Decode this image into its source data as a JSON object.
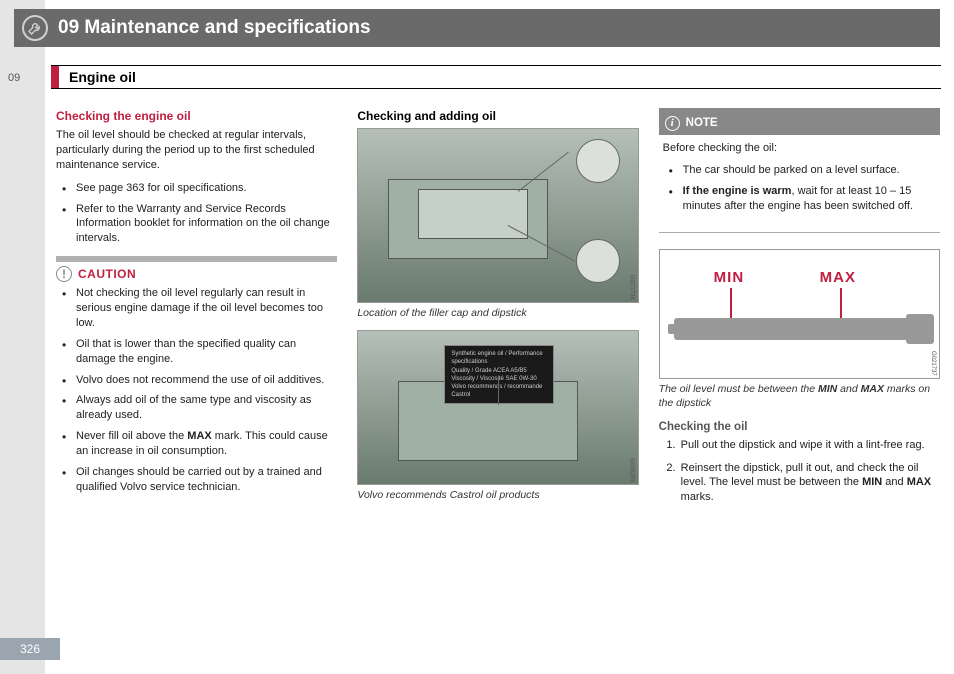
{
  "chapter_number": "09",
  "chapter_title": "09 Maintenance and specifications",
  "section_title": "Engine oil",
  "page_number": "326",
  "col1": {
    "heading": "Checking the engine oil",
    "intro": "The oil level should be checked at regular intervals, particularly during the period up to the first scheduled maintenance service.",
    "bullets": [
      "See page 363 for oil specifications.",
      "Refer to the Warranty and Service Records Information booklet for information on the oil change intervals."
    ],
    "caution_label": "CAUTION",
    "caution_bullets": [
      "Not checking the oil level regularly can result in serious engine damage if the oil level becomes too low.",
      "Oil that is lower than the specified quality can damage the engine.",
      "Volvo does not recommend the use of oil additives.",
      "Always add oil of the same type and viscosity as already used.",
      "Never fill oil above the <b>MAX</b> mark. This could cause an increase in oil consumption.",
      "Oil changes should be carried out by a trained and qualified Volvo service technician."
    ]
  },
  "col2": {
    "heading": "Checking and adding oil",
    "fig1_caption": "Location of the filler cap and dipstick",
    "fig2_caption": "Volvo recommends Castrol oil products",
    "fig1_code": "G021734",
    "fig2_code": "G046294"
  },
  "col3": {
    "note_label": "NOTE",
    "note_intro": "Before checking the oil:",
    "note_bullets": [
      "The car should be parked on a level surface.",
      "<b>If the engine is warm</b>, wait for at least 10 – 15 minutes after the engine has been switched off."
    ],
    "dipstick_min": "MIN",
    "dipstick_max": "MAX",
    "dipstick_caption": "The oil level must be between the <b>MIN</b> and <b>MAX</b> marks on the dipstick",
    "dipstick_code": "G021737",
    "check_heading": "Checking the oil",
    "steps": [
      "Pull out the dipstick and wipe it with a lint-free rag.",
      "Reinsert the dipstick, pull it out, and check the oil level. The level must be between the <b>MIN</b> and <b>MAX</b> marks."
    ]
  }
}
